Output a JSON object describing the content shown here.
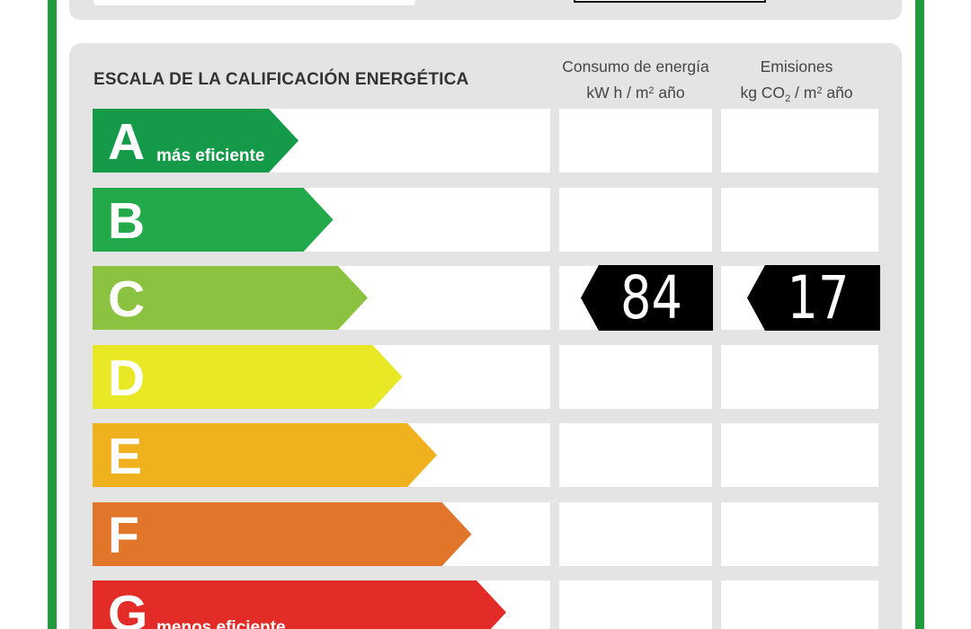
{
  "scale_title": "ESCALA DE LA CALIFICACIÓN ENERGÉTICA",
  "columns": {
    "energy": {
      "line1": "Consumo de energía",
      "unit_prefix": "kW h  / m",
      "unit_sup": "2",
      "unit_suffix": " año"
    },
    "emissions": {
      "line1": "Emisiones",
      "unit_prefix": "kg CO",
      "unit_sub": "2",
      "unit_mid": "  / m",
      "unit_sup": "2",
      "unit_suffix": " año"
    }
  },
  "grades": [
    {
      "letter": "A",
      "sublabel": "más eficiente",
      "color": "#149a49"
    },
    {
      "letter": "B",
      "sublabel": "",
      "color": "#21a94a"
    },
    {
      "letter": "C",
      "sublabel": "",
      "color": "#8bc23f"
    },
    {
      "letter": "D",
      "sublabel": "",
      "color": "#e8e826"
    },
    {
      "letter": "E",
      "sublabel": "",
      "color": "#f0b11e"
    },
    {
      "letter": "F",
      "sublabel": "",
      "color": "#e1752a"
    },
    {
      "letter": "G",
      "sublabel": "menos eficiente",
      "color": "#e32c28"
    }
  ],
  "rating": {
    "grade": "C",
    "energy_value": "84",
    "emissions_value": "17"
  }
}
